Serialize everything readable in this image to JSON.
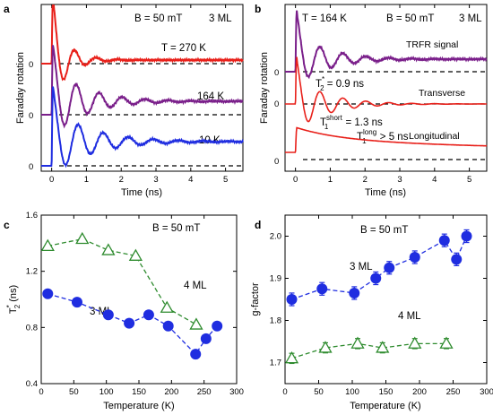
{
  "chart_data": [
    {
      "panel": "a",
      "type": "line",
      "xlabel": "Time (ns)",
      "ylabel": "Faraday rotation",
      "xticks": [
        0,
        1,
        2,
        3,
        4,
        5
      ],
      "xlim": [
        -0.3,
        5.5
      ],
      "annotations": [
        "B = 50 mT",
        "3 ML"
      ],
      "zero_label": "0",
      "series": [
        {
          "name": "T = 270 K",
          "color": "#e8201a",
          "baseline": 0.0,
          "amp": 1.0,
          "period": 0.62,
          "tau": 0.45,
          "offset_above": 0.06
        },
        {
          "name": "164 K",
          "color": "#7a1f8a",
          "baseline": 0.0,
          "amp": 0.9,
          "period": 0.66,
          "tau": 0.9,
          "offset_above": -0.08
        },
        {
          "name": "10 K",
          "color": "#1f2de0",
          "baseline": 0.0,
          "amp": 0.85,
          "period": 0.72,
          "tau": 1.0,
          "offset_above": 0.22
        }
      ]
    },
    {
      "panel": "b",
      "type": "line",
      "xlabel": "Time (ns)",
      "ylabel": "Faraday rotation",
      "xticks": [
        0,
        1,
        2,
        3,
        4,
        5
      ],
      "xlim": [
        -0.3,
        5.5
      ],
      "annotations": [
        "T = 164 K",
        "B = 50 mT",
        "3 ML"
      ],
      "zero_label": "0",
      "series": [
        {
          "name": "TRFR signal",
          "color": "#7a1f8a"
        },
        {
          "name": "Transverse",
          "color": "#e8201a"
        },
        {
          "name": "Longitudinal",
          "color": "#e8201a"
        }
      ],
      "labels": {
        "t2": "T",
        "t2_sup": "*",
        "t2_sub": "2",
        "t2_val": " = 0.9 ns",
        "t1s": "T",
        "t1s_sup": "short",
        "t1s_sub": "1",
        "t1s_val": " = 1.3 ns",
        "t1l": "T",
        "t1l_sup": "long",
        "t1l_sub": "1",
        "t1l_val": " > 5 ns"
      }
    },
    {
      "panel": "c",
      "type": "scatter",
      "xlabel": "Temperature (K)",
      "ylabel_main": "T",
      "ylabel_sup": "*",
      "ylabel_sub": "2",
      "ylabel_unit": " (ns)",
      "xlim": [
        0,
        300
      ],
      "ylim": [
        0.4,
        1.6
      ],
      "xticks": [
        0,
        50,
        100,
        150,
        200,
        250,
        300
      ],
      "yticks": [
        0.4,
        0.8,
        1.2,
        1.6
      ],
      "annotations": [
        "B = 50 mT"
      ],
      "series": [
        {
          "name": "3 ML",
          "color": "#1f2de0",
          "marker": "circle",
          "x": [
            10,
            55,
            103,
            135,
            165,
            195,
            237,
            253,
            270
          ],
          "y": [
            1.04,
            0.98,
            0.89,
            0.83,
            0.89,
            0.81,
            0.61,
            0.72,
            0.81
          ]
        },
        {
          "name": "4 ML",
          "color": "#2e8b2e",
          "marker": "triangle",
          "x": [
            10,
            63,
            103,
            145,
            193,
            238
          ],
          "y": [
            1.38,
            1.43,
            1.35,
            1.31,
            0.94,
            0.82
          ]
        }
      ]
    },
    {
      "panel": "d",
      "type": "scatter",
      "xlabel": "Temperature (K)",
      "ylabel": "g-factor",
      "xlim": [
        0,
        300
      ],
      "ylim": [
        1.65,
        2.05
      ],
      "xticks": [
        0,
        50,
        100,
        150,
        200,
        250,
        300
      ],
      "yticks": [
        1.7,
        1.8,
        1.9,
        2.0
      ],
      "annotations": [
        "B = 50 mT"
      ],
      "series": [
        {
          "name": "3 ML",
          "color": "#1f2de0",
          "marker": "circle",
          "x": [
            10,
            55,
            103,
            135,
            155,
            193,
            237,
            255,
            270
          ],
          "y": [
            1.85,
            1.875,
            1.865,
            1.9,
            1.925,
            1.95,
            1.99,
            1.945,
            2.0
          ],
          "err": [
            0.015,
            0.015,
            0.015,
            0.015,
            0.015,
            0.015,
            0.015,
            0.015,
            0.015
          ]
        },
        {
          "name": "4 ML",
          "color": "#2e8b2e",
          "marker": "triangle",
          "x": [
            10,
            60,
            108,
            145,
            193,
            240
          ],
          "y": [
            1.71,
            1.735,
            1.745,
            1.735,
            1.745,
            1.745
          ],
          "err": [
            0.012,
            0.012,
            0.012,
            0.012,
            0.012,
            0.012
          ]
        }
      ]
    }
  ]
}
